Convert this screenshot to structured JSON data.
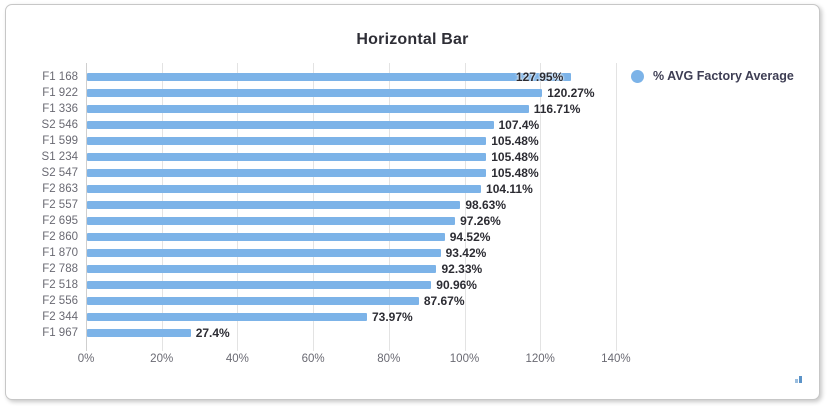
{
  "title": "Horizontal Bar",
  "legend": {
    "label": "% AVG Factory Average",
    "marker_color": "#7cb3e8"
  },
  "colors": {
    "bar": "#7cb3e8",
    "gridline": "#e3e3e3",
    "axis_line": "#cfcfcf",
    "value_label": "#2c2c33",
    "category_label": "#6a6a73",
    "title_text": "#2e2e36",
    "legend_text": "#3e3e54"
  },
  "chart_data": {
    "type": "bar",
    "orientation": "horizontal",
    "title": "Horizontal Bar",
    "series_name": "% AVG Factory Average",
    "categories": [
      "F1 168",
      "F1 922",
      "F1 336",
      "S2 546",
      "F1 599",
      "S1 234",
      "S2 547",
      "F2 863",
      "F2 557",
      "F2 695",
      "F2 860",
      "F1 870",
      "F2 788",
      "F2 518",
      "F2 556",
      "F2 344",
      "F1 967"
    ],
    "values": [
      127.95,
      120.27,
      116.71,
      107.4,
      105.48,
      105.48,
      105.48,
      104.11,
      98.63,
      97.26,
      94.52,
      93.42,
      92.33,
      90.96,
      87.67,
      73.97,
      27.4
    ],
    "value_labels": [
      "127.95%",
      "120.27%",
      "116.71%",
      "107.4%",
      "105.48%",
      "105.48%",
      "105.48%",
      "104.11%",
      "98.63%",
      "97.26%",
      "94.52%",
      "93.42%",
      "92.33%",
      "90.96%",
      "87.67%",
      "73.97%",
      "27.4%"
    ],
    "x_ticks": [
      "0%",
      "20%",
      "40%",
      "60%",
      "80%",
      "100%",
      "120%",
      "140%"
    ],
    "x_tick_values": [
      0,
      20,
      40,
      60,
      80,
      100,
      120,
      140
    ],
    "xlim": [
      0,
      145
    ],
    "grid": "vertical",
    "legend_position": "top-right",
    "value_label_position": "end-of-bar"
  }
}
